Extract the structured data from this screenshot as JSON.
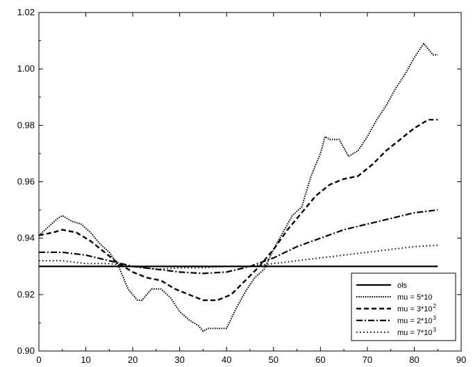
{
  "chart_data": {
    "type": "line",
    "title": "",
    "xlabel": "",
    "ylabel": "",
    "xlim": [
      0,
      90
    ],
    "ylim": [
      0.9,
      1.02
    ],
    "xticks": [
      0,
      10,
      20,
      30,
      40,
      50,
      60,
      70,
      80,
      90
    ],
    "xtick_labels": [
      "0",
      "10",
      "20",
      "30",
      "40",
      "50",
      "60",
      "70",
      "80",
      "90"
    ],
    "yticks": [
      0.9,
      0.92,
      0.94,
      0.96,
      0.98,
      1.0,
      1.02
    ],
    "ytick_labels": [
      "0.90",
      "0.92",
      "0.94",
      "0.96",
      "0.98",
      "1.00",
      "1.02"
    ],
    "grid": false,
    "legend_position": "bottom-right",
    "series": [
      {
        "name": "ols",
        "style": "solid",
        "x": [
          0,
          85
        ],
        "y": [
          0.93,
          0.93
        ]
      },
      {
        "name": "mu = 5*10",
        "style": "dense-dotted",
        "x": [
          0,
          2,
          4,
          5,
          7,
          9,
          11,
          13,
          15,
          17,
          19,
          21,
          22,
          24,
          26,
          28,
          30,
          32,
          34,
          35,
          36,
          38,
          40,
          42,
          44,
          46,
          48,
          50,
          52,
          54,
          56,
          58,
          60,
          61,
          62,
          64,
          66,
          68,
          70,
          72,
          74,
          76,
          78,
          80,
          82,
          84,
          85
        ],
        "y": [
          0.941,
          0.944,
          0.947,
          0.948,
          0.946,
          0.945,
          0.942,
          0.938,
          0.935,
          0.93,
          0.922,
          0.918,
          0.918,
          0.922,
          0.922,
          0.919,
          0.914,
          0.911,
          0.909,
          0.907,
          0.908,
          0.908,
          0.908,
          0.915,
          0.921,
          0.926,
          0.929,
          0.936,
          0.942,
          0.948,
          0.951,
          0.962,
          0.97,
          0.976,
          0.975,
          0.975,
          0.969,
          0.971,
          0.976,
          0.982,
          0.987,
          0.993,
          0.998,
          1.004,
          1.009,
          1.005,
          1.005
        ]
      },
      {
        "name": "mu = 3*10²",
        "style": "dashed",
        "x": [
          0,
          3,
          5,
          8,
          11,
          14,
          17,
          20,
          23,
          26,
          29,
          32,
          35,
          38,
          41,
          44,
          47,
          50,
          53,
          56,
          59,
          62,
          65,
          68,
          71,
          74,
          77,
          80,
          83,
          85
        ],
        "y": [
          0.941,
          0.942,
          0.943,
          0.942,
          0.939,
          0.935,
          0.931,
          0.928,
          0.926,
          0.925,
          0.922,
          0.92,
          0.918,
          0.918,
          0.92,
          0.925,
          0.93,
          0.936,
          0.943,
          0.949,
          0.955,
          0.959,
          0.961,
          0.962,
          0.966,
          0.971,
          0.975,
          0.979,
          0.982,
          0.982
        ]
      },
      {
        "name": "mu = 2*10³",
        "style": "dash-dot",
        "x": [
          0,
          5,
          10,
          15,
          20,
          25,
          30,
          35,
          40,
          45,
          50,
          55,
          60,
          65,
          70,
          75,
          80,
          85
        ],
        "y": [
          0.935,
          0.935,
          0.934,
          0.932,
          0.93,
          0.929,
          0.928,
          0.9275,
          0.928,
          0.93,
          0.933,
          0.937,
          0.94,
          0.943,
          0.945,
          0.947,
          0.949,
          0.95
        ]
      },
      {
        "name": "mu = 7*10³",
        "style": "sparse-dotted",
        "x": [
          0,
          5,
          10,
          15,
          20,
          25,
          30,
          35,
          40,
          45,
          50,
          55,
          60,
          65,
          70,
          75,
          80,
          85
        ],
        "y": [
          0.932,
          0.932,
          0.931,
          0.931,
          0.93,
          0.929,
          0.9295,
          0.9295,
          0.93,
          0.93,
          0.931,
          0.932,
          0.933,
          0.934,
          0.935,
          0.936,
          0.937,
          0.9375
        ]
      }
    ],
    "legend": {
      "entries": [
        {
          "base": "ols",
          "sup": ""
        },
        {
          "base": "mu  =  5*10",
          "sup": ""
        },
        {
          "base": "mu  =  3*10",
          "sup": "2"
        },
        {
          "base": "mu  =  2*10",
          "sup": "3"
        },
        {
          "base": "mu  =  7*10",
          "sup": "3"
        }
      ]
    }
  }
}
